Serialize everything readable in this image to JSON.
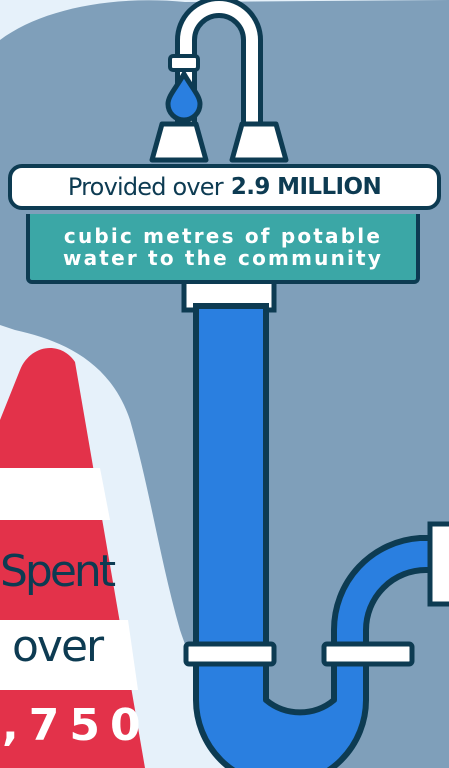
{
  "colors": {
    "background": "#e6f1fa",
    "blob": "#7f9fba",
    "outline": "#0d3b52",
    "pipe_blue": "#2a7fe0",
    "teal": "#3ba7a6",
    "cone_red": "#e3324a",
    "white": "#ffffff"
  },
  "icons": [
    "faucet-icon",
    "water-drop-icon",
    "drain-pipe-icon",
    "traffic-cone-icon"
  ],
  "banner": {
    "lead": "Provided over",
    "highlight": "2.9 MILLION"
  },
  "subtext": {
    "line1": "cubic metres of potable",
    "line2": "water to the community"
  },
  "cone": {
    "line1": "Spent",
    "line2": "over",
    "amount": ",750"
  }
}
